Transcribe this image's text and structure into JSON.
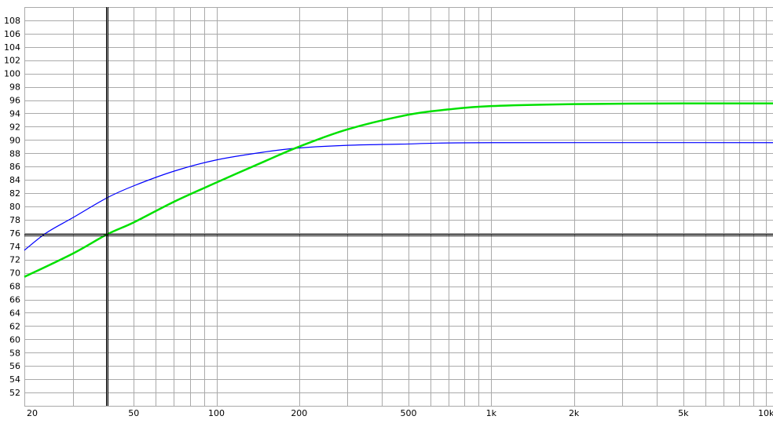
{
  "chart_data": {
    "type": "line",
    "title": "",
    "xlabel": "",
    "ylabel": "",
    "x_scale": "log",
    "xlim": [
      20,
      10600
    ],
    "ylim": [
      50,
      110
    ],
    "grid": true,
    "x_tick_labels": [
      {
        "value": 20,
        "label": "20"
      },
      {
        "value": 50,
        "label": "50"
      },
      {
        "value": 100,
        "label": "100"
      },
      {
        "value": 200,
        "label": "200"
      },
      {
        "value": 500,
        "label": "500"
      },
      {
        "value": 1000,
        "label": "1k"
      },
      {
        "value": 2000,
        "label": "2k"
      },
      {
        "value": 5000,
        "label": "5k"
      },
      {
        "value": 10000,
        "label": "10k"
      }
    ],
    "y_ticks": [
      52,
      54,
      56,
      58,
      60,
      62,
      64,
      66,
      68,
      70,
      72,
      74,
      76,
      78,
      80,
      82,
      84,
      86,
      88,
      90,
      92,
      94,
      96,
      98,
      100,
      102,
      104,
      106,
      108
    ],
    "cursor": {
      "x": 40,
      "y": 75.8,
      "color": "#000000"
    },
    "series": [
      {
        "color": "#0000ff",
        "x": [
          20,
          24,
          30,
          40,
          50,
          70,
          100,
          150,
          200,
          300,
          500,
          600,
          1000,
          10600
        ],
        "y": [
          73.4,
          76.0,
          78.3,
          81.3,
          83.1,
          85.3,
          87.0,
          88.2,
          88.8,
          89.2,
          89.4,
          89.5,
          89.6,
          89.6
        ]
      },
      {
        "color": "#00e000",
        "x": [
          20,
          30,
          40,
          50,
          70,
          100,
          150,
          200,
          300,
          500,
          700,
          1000,
          2000,
          5000,
          10600
        ],
        "y": [
          69.4,
          72.9,
          75.8,
          77.6,
          80.7,
          83.6,
          86.8,
          89.0,
          91.6,
          93.8,
          94.6,
          95.1,
          95.4,
          95.5,
          95.5
        ]
      }
    ]
  }
}
